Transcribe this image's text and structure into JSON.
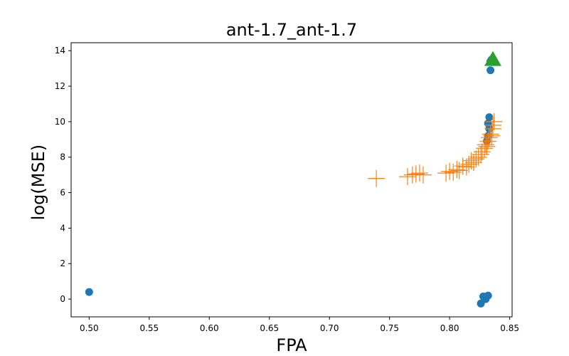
{
  "chart_data": {
    "type": "scatter",
    "title": "ant-1.7_ant-1.7",
    "xlabel": "FPA",
    "ylabel": "log(MSE)",
    "xlim": [
      0.485,
      0.852
    ],
    "ylim": [
      -1.0,
      14.45
    ],
    "xticks": [
      0.5,
      0.55,
      0.6,
      0.65,
      0.7,
      0.75,
      0.8,
      0.85
    ],
    "xtick_labels": [
      "0.50",
      "0.55",
      "0.60",
      "0.65",
      "0.70",
      "0.75",
      "0.80",
      "0.85"
    ],
    "yticks": [
      0,
      2,
      4,
      6,
      8,
      10,
      12,
      14
    ],
    "ytick_labels": [
      "0",
      "2",
      "4",
      "6",
      "8",
      "10",
      "12",
      "14"
    ],
    "grid": false,
    "series": [
      {
        "marker": "circle",
        "color": "#1f77b4",
        "points": [
          [
            0.5,
            0.4
          ],
          [
            0.826,
            -0.25
          ],
          [
            0.828,
            0.15
          ],
          [
            0.83,
            0.0
          ],
          [
            0.832,
            0.2
          ],
          [
            0.831,
            8.9
          ],
          [
            0.832,
            9.2
          ],
          [
            0.832,
            9.9
          ],
          [
            0.833,
            10.25
          ],
          [
            0.833,
            9.6
          ],
          [
            0.834,
            13.4
          ],
          [
            0.835,
            13.5
          ],
          [
            0.834,
            12.9
          ]
        ]
      },
      {
        "marker": "plus",
        "color": "#ff7f0e",
        "points": [
          [
            0.739,
            6.8
          ],
          [
            0.765,
            6.9
          ],
          [
            0.769,
            7.0
          ],
          [
            0.772,
            7.05
          ],
          [
            0.775,
            7.1
          ],
          [
            0.778,
            7.0
          ],
          [
            0.797,
            7.1
          ],
          [
            0.8,
            7.2
          ],
          [
            0.803,
            7.15
          ],
          [
            0.806,
            7.3
          ],
          [
            0.808,
            7.25
          ],
          [
            0.811,
            7.5
          ],
          [
            0.814,
            7.45
          ],
          [
            0.816,
            7.6
          ],
          [
            0.818,
            7.8
          ],
          [
            0.82,
            7.7
          ],
          [
            0.822,
            7.9
          ],
          [
            0.824,
            8.0
          ],
          [
            0.826,
            8.15
          ],
          [
            0.827,
            8.3
          ],
          [
            0.829,
            8.5
          ],
          [
            0.83,
            8.7
          ],
          [
            0.831,
            8.6
          ],
          [
            0.832,
            8.9
          ],
          [
            0.833,
            9.1
          ],
          [
            0.834,
            9.3
          ],
          [
            0.835,
            9.2
          ],
          [
            0.836,
            9.6
          ],
          [
            0.836,
            9.8
          ],
          [
            0.837,
            10.0
          ]
        ]
      },
      {
        "marker": "triangle-up",
        "color": "#2ca02c",
        "points": [
          [
            0.836,
            13.5
          ]
        ]
      }
    ]
  }
}
